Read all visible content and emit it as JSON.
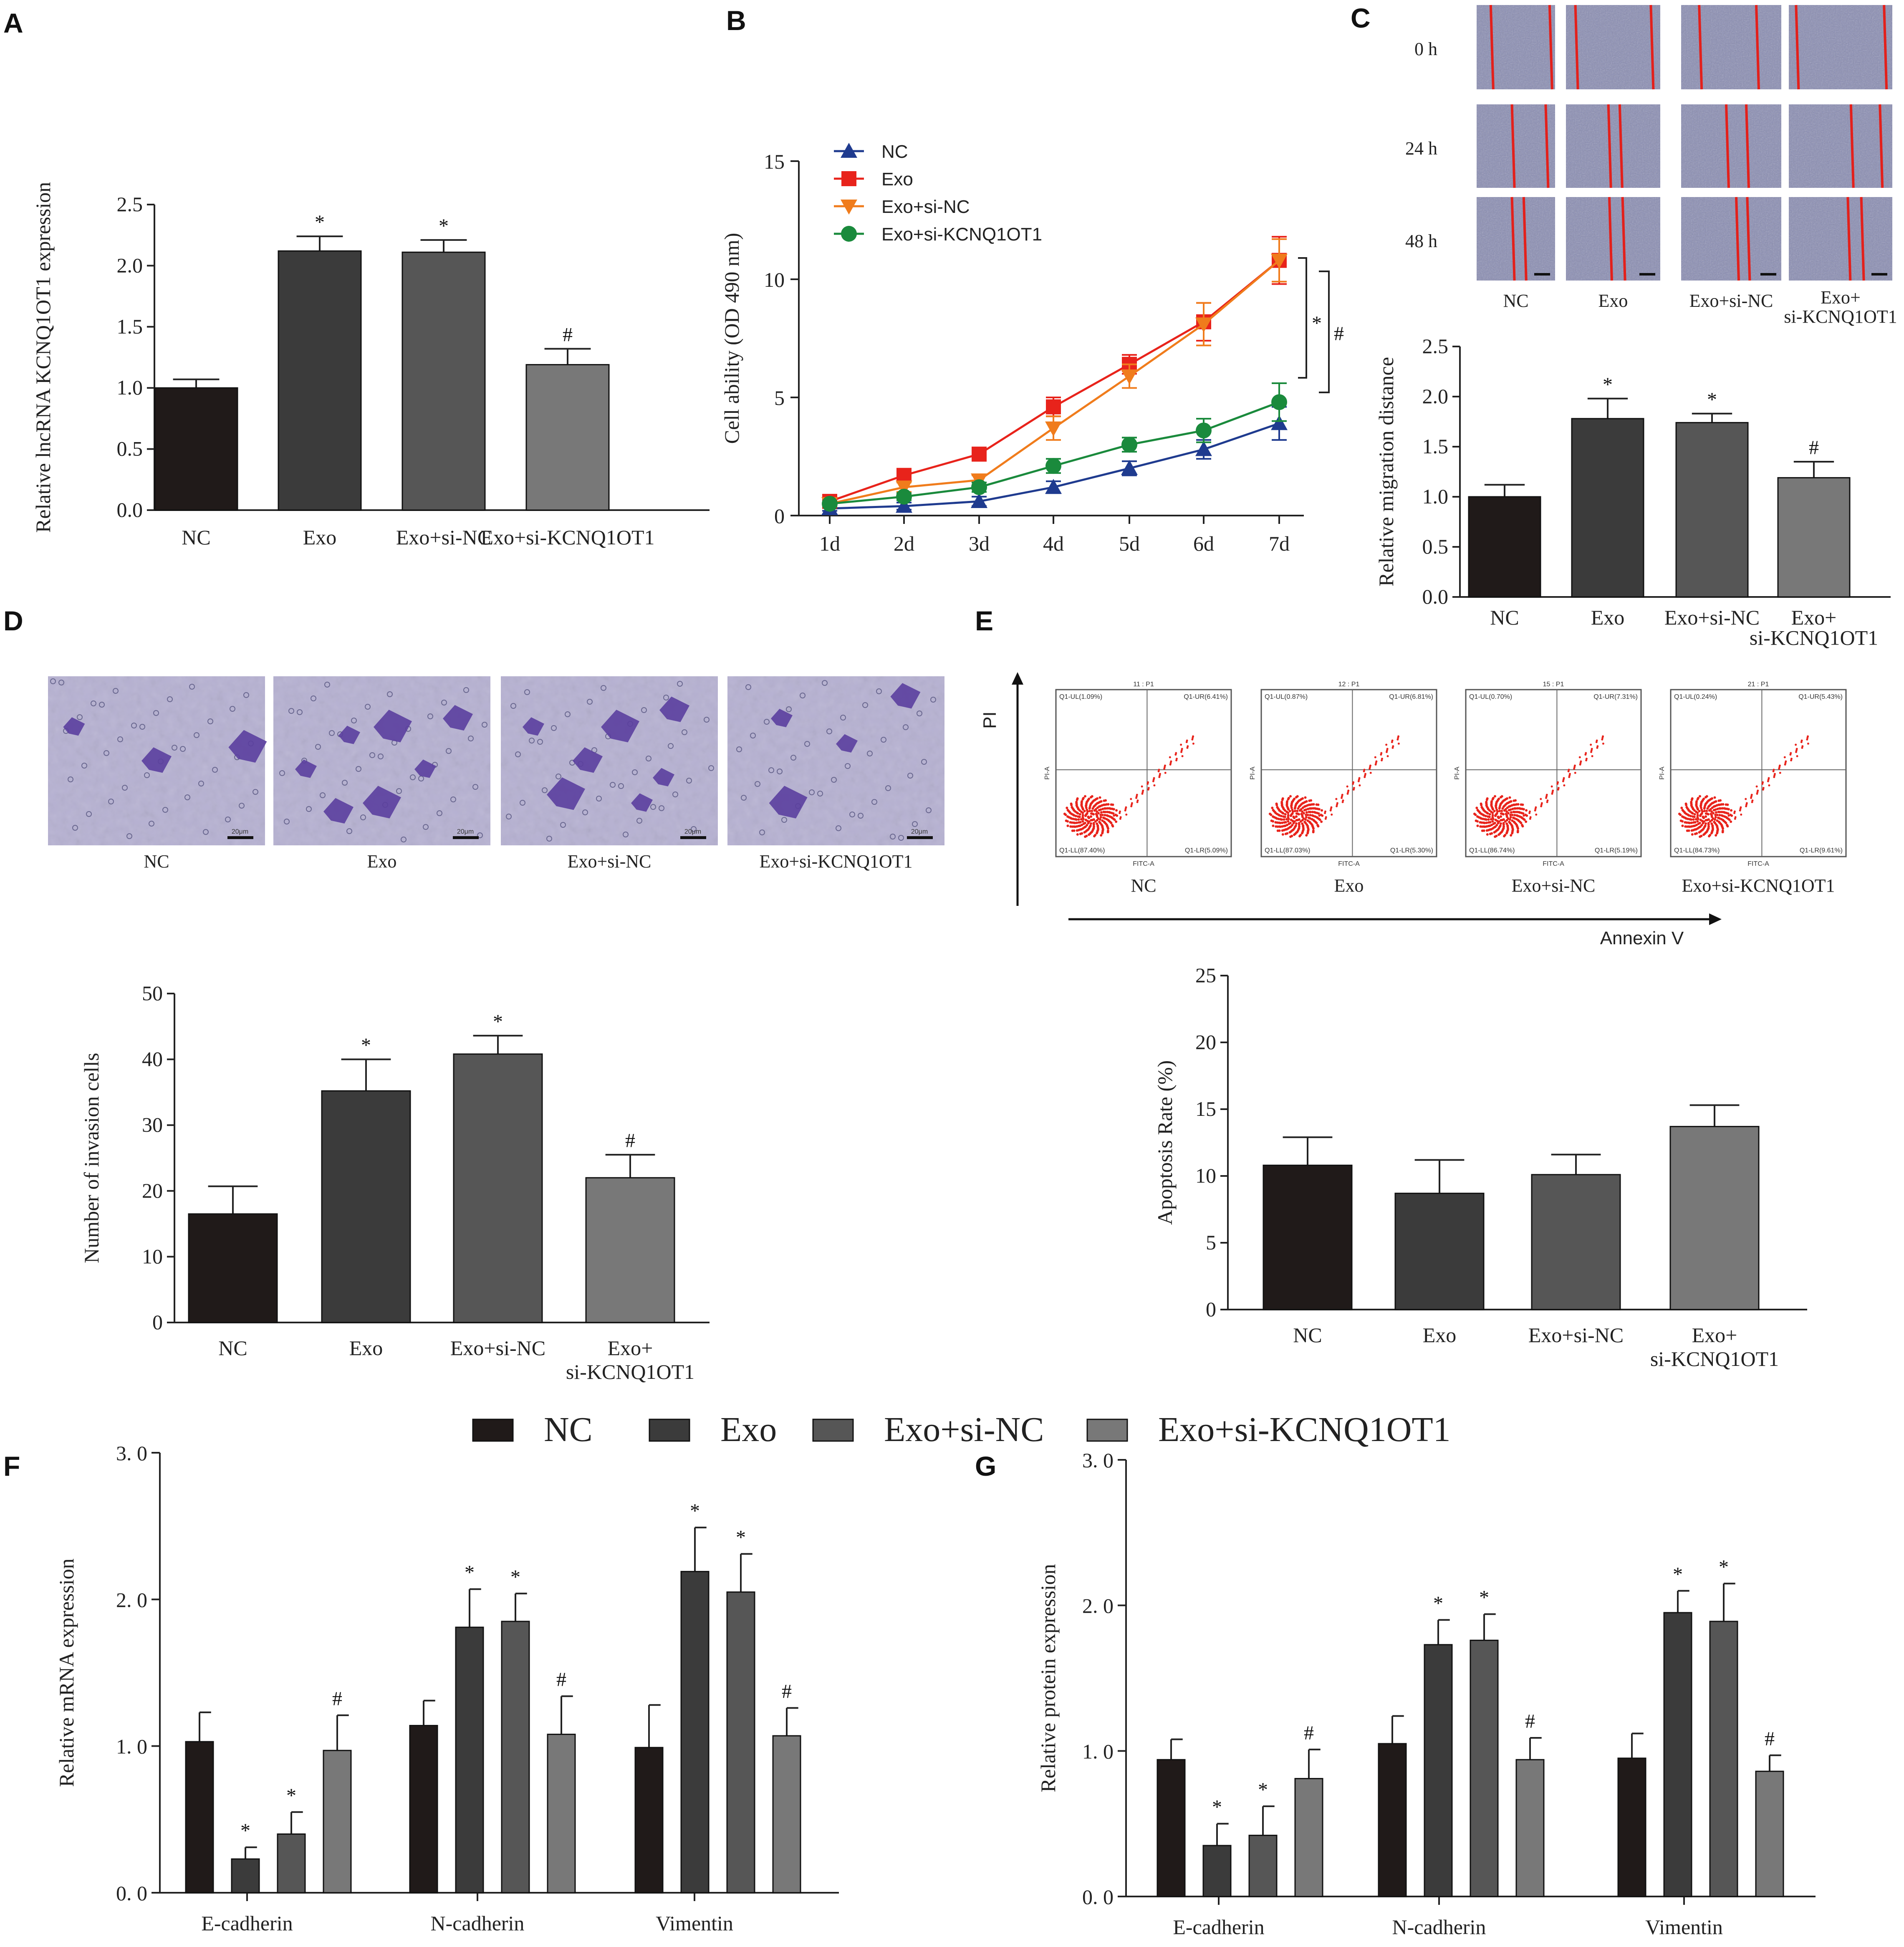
{
  "panels": {
    "A": "A",
    "B": "B",
    "C": "C",
    "D": "D",
    "E": "E",
    "F": "F",
    "G": "G"
  },
  "colors": {
    "NC": "#201a19",
    "Exo": "#3b3b3b",
    "Exo_si_NC": "#565656",
    "Exo_si_KCNQ1OT1": "#787878",
    "line_NC": "#1f3b8f",
    "line_Exo": "#e8231b",
    "line_Exo_si_NC": "#f07c1c",
    "line_Exo_si_KCNQ1OT1": "#1a8a3c",
    "flow_dot": "#e8231b",
    "micro_bg": "#8c8fb4",
    "invasion_bg": "#b6b1d2",
    "crystal_violet": "#5b3f9e"
  },
  "panel_C_images": {
    "rows": [
      "0 h",
      "24 h",
      "48 h"
    ],
    "cols": [
      "NC",
      "Exo",
      "Exo+si-NC"
    ],
    "last_col": [
      "Exo+",
      "si-KCNQ1OT1"
    ]
  },
  "panel_D_images": {
    "labels": [
      "NC",
      "Exo",
      "Exo+si-NC",
      "Exo+si-KCNQ1OT1"
    ],
    "scale": "20μm"
  },
  "panel_E_flow": {
    "y_axis": "PI",
    "x_axis": "Annexin V",
    "plot_x": "FITC-A",
    "plot_y": "PI-A",
    "labels": [
      "NC",
      "Exo",
      "Exo+si-NC",
      "Exo+si-KCNQ1OT1"
    ],
    "titles": [
      "11 : P1",
      "12 : P1",
      "15 : P1",
      "21 : P1"
    ],
    "quadrants": [
      {
        "ul": "Q1-UL(1.09%)",
        "ur": "Q1-UR(6.41%)",
        "ll": "Q1-LL(87.40%)",
        "lr": "Q1-LR(5.09%)"
      },
      {
        "ul": "Q1-UL(0.87%)",
        "ur": "Q1-UR(6.81%)",
        "ll": "Q1-LL(87.03%)",
        "lr": "Q1-LR(5.30%)"
      },
      {
        "ul": "Q1-UL(0.70%)",
        "ur": "Q1-UR(7.31%)",
        "ll": "Q1-LL(86.74%)",
        "lr": "Q1-LR(5.19%)"
      },
      {
        "ul": "Q1-UL(0.24%)",
        "ur": "Q1-UR(5.43%)",
        "ll": "Q1-LL(84.73%)",
        "lr": "Q1-LR(9.61%)"
      }
    ]
  },
  "legend_FG": [
    "NC",
    "Exo",
    "Exo+si-NC",
    "Exo+si-KCNQ1OT1"
  ],
  "chart_data": [
    {
      "id": "A",
      "type": "bar",
      "ylabel": "Relative lncRNA KCNQ1OT1 expression",
      "categories": [
        "NC",
        "Exo",
        "Exo+si-NC",
        "Exo+si-KCNQ1OT1"
      ],
      "values": [
        1.0,
        2.12,
        2.11,
        1.19
      ],
      "errors": [
        0.07,
        0.12,
        0.1,
        0.13
      ],
      "marks": [
        "",
        "*",
        "*",
        "#"
      ],
      "ylim": [
        0,
        2.5
      ],
      "yticks": [
        "0.0",
        "0.5",
        "1.0",
        "1.5",
        "2.0",
        "2.5"
      ]
    },
    {
      "id": "B",
      "type": "line",
      "ylabel": "Cell ability (OD 490 nm)",
      "x": [
        "1d",
        "2d",
        "3d",
        "4d",
        "5d",
        "6d",
        "7d"
      ],
      "ylim": [
        0,
        15
      ],
      "yticks": [
        "0",
        "5",
        "10",
        "15"
      ],
      "series": [
        {
          "name": "NC",
          "marker": "triangle-up",
          "values": [
            0.3,
            0.4,
            0.6,
            1.2,
            2.0,
            2.8,
            3.9
          ],
          "errors": [
            0.1,
            0.15,
            0.2,
            0.25,
            0.3,
            0.4,
            0.7
          ]
        },
        {
          "name": "Exo",
          "marker": "square",
          "values": [
            0.6,
            1.7,
            2.6,
            4.6,
            6.4,
            8.2,
            10.8
          ],
          "errors": [
            0.15,
            0.2,
            0.2,
            0.4,
            0.4,
            0.8,
            1.0
          ]
        },
        {
          "name": "Exo+si-NC",
          "marker": "triangle-down",
          "values": [
            0.5,
            1.2,
            1.5,
            3.7,
            5.9,
            8.1,
            10.8
          ],
          "errors": [
            0.1,
            0.2,
            0.2,
            0.5,
            0.5,
            0.9,
            0.9
          ]
        },
        {
          "name": "Exo+si-KCNQ1OT1",
          "marker": "circle",
          "values": [
            0.5,
            0.8,
            1.2,
            2.1,
            3.0,
            3.6,
            4.8
          ],
          "errors": [
            0.1,
            0.15,
            0.2,
            0.3,
            0.3,
            0.5,
            0.8
          ]
        }
      ],
      "annotations": [
        "*",
        "#"
      ]
    },
    {
      "id": "C",
      "type": "bar",
      "ylabel": "Relative migration distance",
      "categories": [
        "NC",
        "Exo",
        "Exo+si-NC",
        "Exo+si-KCNQ1OT1"
      ],
      "category_lines": [
        [
          "NC"
        ],
        [
          "Exo"
        ],
        [
          "Exo+si-NC"
        ],
        [
          "Exo+",
          "si-KCNQ1OT1"
        ]
      ],
      "values": [
        1.0,
        1.78,
        1.74,
        1.19
      ],
      "errors": [
        0.12,
        0.2,
        0.09,
        0.16
      ],
      "marks": [
        "",
        "*",
        "*",
        "#"
      ],
      "ylim": [
        0,
        2.5
      ],
      "yticks": [
        "0.0",
        "0.5",
        "1.0",
        "1.5",
        "2.0",
        "2.5"
      ]
    },
    {
      "id": "D",
      "type": "bar",
      "ylabel": "Number of invasion cells",
      "categories": [
        "NC",
        "Exo",
        "Exo+si-NC",
        "Exo+si-KCNQ1OT1"
      ],
      "category_lines": [
        [
          "NC"
        ],
        [
          "Exo"
        ],
        [
          "Exo+si-NC"
        ],
        [
          "Exo+",
          "si-KCNQ1OT1"
        ]
      ],
      "values": [
        16.5,
        35.2,
        40.8,
        22.0
      ],
      "errors": [
        4.2,
        4.8,
        2.8,
        3.5
      ],
      "marks": [
        "",
        "*",
        "*",
        "#"
      ],
      "ylim": [
        0,
        50
      ],
      "yticks": [
        "0",
        "10",
        "20",
        "30",
        "40",
        "50"
      ]
    },
    {
      "id": "E",
      "type": "bar",
      "ylabel": "Apoptosis Rate (%)",
      "categories": [
        "NC",
        "Exo",
        "Exo+si-NC",
        "Exo+si-KCNQ1OT1"
      ],
      "category_lines": [
        [
          "NC"
        ],
        [
          "Exo"
        ],
        [
          "Exo+si-NC"
        ],
        [
          "Exo+",
          "si-KCNQ1OT1"
        ]
      ],
      "values": [
        10.8,
        8.7,
        10.1,
        13.7
      ],
      "errors": [
        2.1,
        2.5,
        1.5,
        1.6
      ],
      "marks": [
        "",
        "",
        "",
        ""
      ],
      "ylim": [
        0,
        25
      ],
      "yticks": [
        "0",
        "5",
        "10",
        "15",
        "20",
        "25"
      ]
    },
    {
      "id": "F",
      "type": "bar",
      "ylabel": "Relative mRNA expression",
      "categories": [
        "E-cadherin",
        "N-cadherin",
        "Vimentin"
      ],
      "series": [
        {
          "name": "NC",
          "values": [
            1.03,
            1.14,
            0.99
          ],
          "errors": [
            0.2,
            0.17,
            0.29
          ],
          "marks": [
            "",
            "",
            ""
          ]
        },
        {
          "name": "Exo",
          "values": [
            0.23,
            1.81,
            2.19
          ],
          "errors": [
            0.08,
            0.26,
            0.3
          ],
          "marks": [
            "*",
            "*",
            "*"
          ]
        },
        {
          "name": "Exo+si-NC",
          "values": [
            0.4,
            1.85,
            2.05
          ],
          "errors": [
            0.15,
            0.19,
            0.26
          ],
          "marks": [
            "*",
            "*",
            "*"
          ]
        },
        {
          "name": "Exo+si-KCNQ1OT1",
          "values": [
            0.97,
            1.08,
            1.07
          ],
          "errors": [
            0.24,
            0.26,
            0.19
          ],
          "marks": [
            "#",
            "#",
            "#"
          ]
        }
      ],
      "ylim": [
        0,
        3
      ],
      "yticks": [
        "0. 0",
        "1. 0",
        "2. 0",
        "3. 0"
      ]
    },
    {
      "id": "G",
      "type": "bar",
      "ylabel": "Relative protein expression",
      "categories": [
        "E-cadherin",
        "N-cadherin",
        "Vimentin"
      ],
      "series": [
        {
          "name": "NC",
          "values": [
            0.94,
            1.05,
            0.95
          ],
          "errors": [
            0.14,
            0.19,
            0.17
          ],
          "marks": [
            "",
            "",
            ""
          ]
        },
        {
          "name": "Exo",
          "values": [
            0.35,
            1.73,
            1.95
          ],
          "errors": [
            0.15,
            0.17,
            0.15
          ],
          "marks": [
            "*",
            "*",
            "*"
          ]
        },
        {
          "name": "Exo+si-NC",
          "values": [
            0.42,
            1.76,
            1.89
          ],
          "errors": [
            0.2,
            0.18,
            0.26
          ],
          "marks": [
            "*",
            "*",
            "*"
          ]
        },
        {
          "name": "Exo+si-KCNQ1OT1",
          "values": [
            0.81,
            0.94,
            0.86
          ],
          "errors": [
            0.2,
            0.15,
            0.11
          ],
          "marks": [
            "#",
            "#",
            "#"
          ]
        }
      ],
      "ylim": [
        0,
        3
      ],
      "yticks": [
        "0. 0",
        "1. 0",
        "2. 0",
        "3. 0"
      ]
    }
  ]
}
